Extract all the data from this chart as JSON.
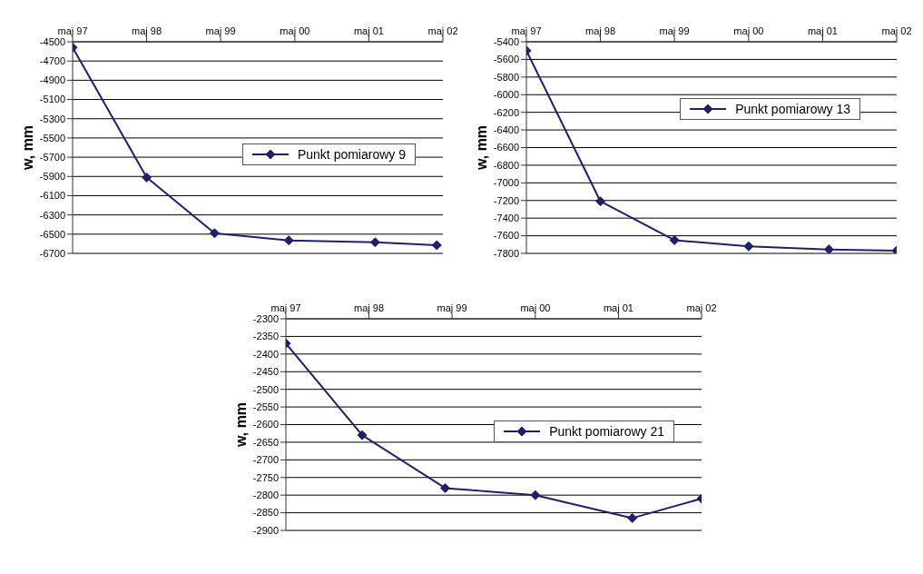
{
  "chart_data": [
    {
      "type": "line",
      "ylabel": "w, mm",
      "x": [
        "1997-05",
        "1998-05",
        "1999-04",
        "2000-04",
        "2001-06",
        "2002-04"
      ],
      "xlim": [
        "1997-05",
        "2002-05"
      ],
      "xticks": [
        {
          "value": "1997-05",
          "label": "maj 97"
        },
        {
          "value": "1998-05",
          "label": "maj 98"
        },
        {
          "value": "1999-05",
          "label": "maj 99"
        },
        {
          "value": "2000-05",
          "label": "maj 00"
        },
        {
          "value": "2001-05",
          "label": "maj 01"
        },
        {
          "value": "2002-05",
          "label": "maj 02"
        }
      ],
      "ylim": [
        -6700,
        -4500
      ],
      "yticks": [
        -6700,
        -6500,
        -6300,
        -6100,
        -5900,
        -5700,
        -5500,
        -5300,
        -5100,
        -4900,
        -4700,
        -4500
      ],
      "grid": "y",
      "legend": "right",
      "marker": "diamond",
      "series": [
        {
          "name": "Punkt pomiarowy 9",
          "color": "#1f1f6b",
          "values": [
            -4560,
            -5910,
            -6490,
            -6565,
            -6585,
            -6615
          ]
        }
      ]
    },
    {
      "type": "line",
      "ylabel": "w, mm",
      "x": [
        "1997-05",
        "1998-05",
        "1999-05",
        "2000-05",
        "2001-06",
        "2002-05"
      ],
      "xlim": [
        "1997-05",
        "2002-05"
      ],
      "xticks": [
        {
          "value": "1997-05",
          "label": "maj 97"
        },
        {
          "value": "1998-05",
          "label": "maj 98"
        },
        {
          "value": "1999-05",
          "label": "maj 99"
        },
        {
          "value": "2000-05",
          "label": "maj 00"
        },
        {
          "value": "2001-05",
          "label": "maj 01"
        },
        {
          "value": "2002-05",
          "label": "maj 02"
        }
      ],
      "ylim": [
        -7800,
        -5400
      ],
      "yticks": [
        -7800,
        -7600,
        -7400,
        -7200,
        -7000,
        -6800,
        -6600,
        -6400,
        -6200,
        -6000,
        -5800,
        -5600,
        -5400
      ],
      "grid": "y",
      "legend": "top right",
      "marker": "diamond",
      "series": [
        {
          "name": "Punkt pomiarowy 13",
          "color": "#1f1f6b",
          "values": [
            -5500,
            -7210,
            -7650,
            -7720,
            -7755,
            -7770
          ]
        }
      ]
    },
    {
      "type": "line",
      "ylabel": "w, mm",
      "x": [
        "1997-05",
        "1998-04",
        "1999-04",
        "2000-05",
        "2001-07",
        "2002-05"
      ],
      "xlim": [
        "1997-05",
        "2002-05"
      ],
      "xticks": [
        {
          "value": "1997-05",
          "label": "maj 97"
        },
        {
          "value": "1998-05",
          "label": "maj 98"
        },
        {
          "value": "1999-05",
          "label": "maj 99"
        },
        {
          "value": "2000-05",
          "label": "maj 00"
        },
        {
          "value": "2001-05",
          "label": "maj 01"
        },
        {
          "value": "2002-05",
          "label": "maj 02"
        }
      ],
      "ylim": [
        -2900,
        -2300
      ],
      "yticks": [
        -2900,
        -2850,
        -2800,
        -2750,
        -2700,
        -2650,
        -2600,
        -2550,
        -2500,
        -2450,
        -2400,
        -2350,
        -2300
      ],
      "grid": "y",
      "legend": "right",
      "marker": "diamond",
      "series": [
        {
          "name": "Punkt pomiarowy 21",
          "color": "#1f1f6b",
          "values": [
            -2370,
            -2630,
            -2780,
            -2800,
            -2865,
            -2810
          ]
        }
      ]
    }
  ]
}
